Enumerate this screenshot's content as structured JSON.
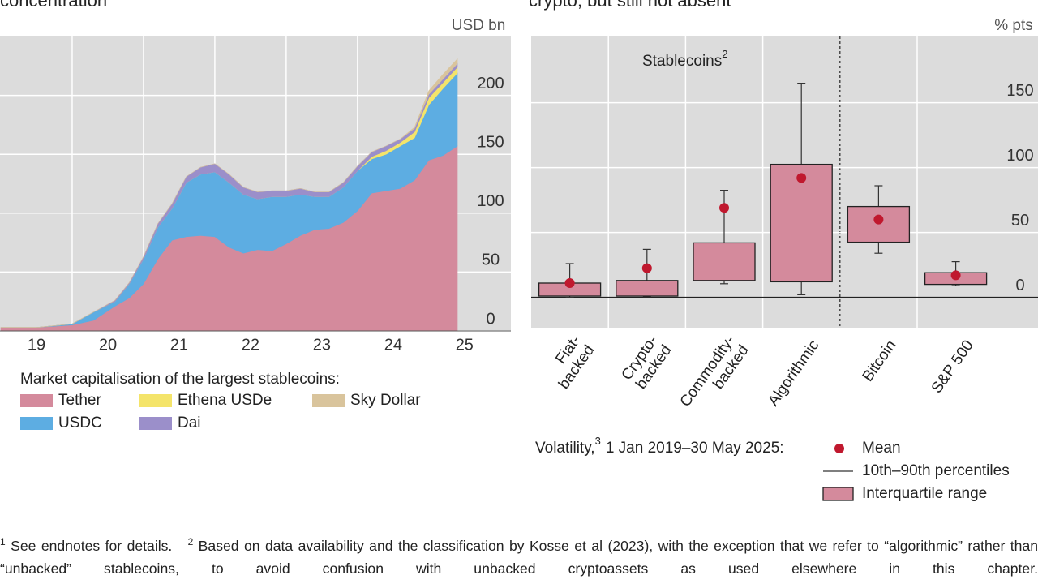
{
  "chart_data": [
    {
      "type": "stacked-area",
      "title": "concentration",
      "y_label": "USD bn",
      "x": [
        2019.0,
        2019.5,
        2020.0,
        2020.3,
        2020.6,
        2020.8,
        2021.0,
        2021.2,
        2021.4,
        2021.6,
        2021.8,
        2022.0,
        2022.2,
        2022.4,
        2022.6,
        2022.8,
        2023.0,
        2023.2,
        2023.4,
        2023.6,
        2023.8,
        2024.0,
        2024.2,
        2024.4,
        2024.6,
        2024.8,
        2025.0,
        2025.2,
        2025.4
      ],
      "xlim": [
        2019,
        2026.15
      ],
      "xticks": [
        {
          "value": 2019.5,
          "label": "19"
        },
        {
          "value": 2020.5,
          "label": "20"
        },
        {
          "value": 2021.5,
          "label": "21"
        },
        {
          "value": 2022.5,
          "label": "22"
        },
        {
          "value": 2023.5,
          "label": "23"
        },
        {
          "value": 2024.5,
          "label": "24"
        },
        {
          "value": 2025.5,
          "label": "25"
        }
      ],
      "ylim": [
        0,
        250
      ],
      "yticks": [
        0,
        50,
        100,
        150,
        200
      ],
      "grid": true,
      "legend_title": "Market capitalisation of the largest stablecoins:",
      "series": [
        {
          "name": "Tether",
          "color": "#d48a9c",
          "values": [
            3,
            3,
            5,
            9,
            21,
            28,
            40,
            61,
            77,
            80,
            81,
            80,
            71,
            66,
            69,
            68,
            74,
            81,
            86,
            87,
            92,
            102,
            117,
            119,
            121,
            128,
            145,
            149,
            157
          ]
        },
        {
          "name": "USDC",
          "color": "#5dade2",
          "values": [
            0,
            0,
            1,
            7,
            4,
            12,
            21,
            27,
            27,
            46,
            52,
            55,
            55,
            50,
            43,
            46,
            40,
            35,
            28,
            27,
            30,
            34,
            29,
            31,
            36,
            36,
            47,
            57,
            62
          ]
        },
        {
          "name": "Ethena USDe",
          "color": "#f4e46a",
          "values": [
            0,
            0,
            0,
            0,
            0,
            0,
            0,
            0,
            0,
            0,
            0,
            0,
            0,
            0,
            0,
            0,
            0,
            0,
            0,
            0,
            0,
            0,
            2,
            3,
            3,
            5,
            6,
            5,
            5
          ]
        },
        {
          "name": "Dai",
          "color": "#9b8fca",
          "values": [
            0,
            0,
            0,
            0,
            1,
            1,
            2,
            3,
            4,
            5,
            6,
            7,
            7,
            6,
            6,
            5,
            5,
            5,
            4,
            4,
            4,
            4,
            4,
            4,
            3,
            3,
            3,
            3,
            3
          ]
        },
        {
          "name": "Sky Dollar",
          "color": "#d9c49c",
          "values": [
            0,
            0,
            0,
            0,
            0,
            0,
            0,
            0,
            0,
            0,
            0,
            0,
            0,
            0,
            0,
            0,
            0,
            0,
            0,
            0,
            0,
            0,
            0,
            0,
            0,
            1,
            3,
            4,
            4
          ]
        }
      ]
    },
    {
      "type": "box",
      "title": "crypto, but still not absent",
      "y_label": "% pts",
      "annotation": {
        "text": "Stablecoins",
        "sup": "2"
      },
      "categories": [
        "Fiat-\nbacked",
        "Crypto-\nbacked",
        "Commodity-\nbacked",
        "Algorithmic",
        "Bitcoin",
        "S&P 500"
      ],
      "boxes": [
        {
          "p10": 0,
          "q1": 1,
          "q3": 11,
          "p90": 26,
          "mean": 11
        },
        {
          "p10": 0.5,
          "q1": 1,
          "q3": 13,
          "p90": 37,
          "mean": 22.5
        },
        {
          "p10": 10.5,
          "q1": 13,
          "q3": 42,
          "p90": 82.5,
          "mean": 69
        },
        {
          "p10": 2,
          "q1": 12,
          "q3": 102.5,
          "p90": 165,
          "mean": 92
        },
        {
          "p10": 34,
          "q1": 42.5,
          "q3": 70,
          "p90": 86,
          "mean": 60
        },
        {
          "p10": 9,
          "q1": 10,
          "q3": 19,
          "p90": 27.5,
          "mean": 17
        }
      ],
      "divider_after": 3,
      "ylim": [
        -24,
        201
      ],
      "yticks": [
        0,
        50,
        100,
        150
      ],
      "grid": true,
      "box_color": "#d48a9c",
      "mean_color": "#c0182e",
      "legend_title": {
        "text": "Volatility,",
        "sup": "3",
        "rest": "1 Jan 2019–30 May 2025:"
      },
      "legend": {
        "mean": "Mean",
        "range": "10th–90th percentiles",
        "iqr": "Interquartile range"
      }
    }
  ],
  "footnotes": [
    {
      "marker": "1",
      "text": "See endnotes for details."
    },
    {
      "marker": "2",
      "text": "Based on data availability and the classification by Kosse et al (2023), with the exception that we refer to “algorithmic” rather than “unbacked” stablecoins, to avoid confusion with unbacked cryptoassets as used elsewhere in this chapter."
    }
  ]
}
